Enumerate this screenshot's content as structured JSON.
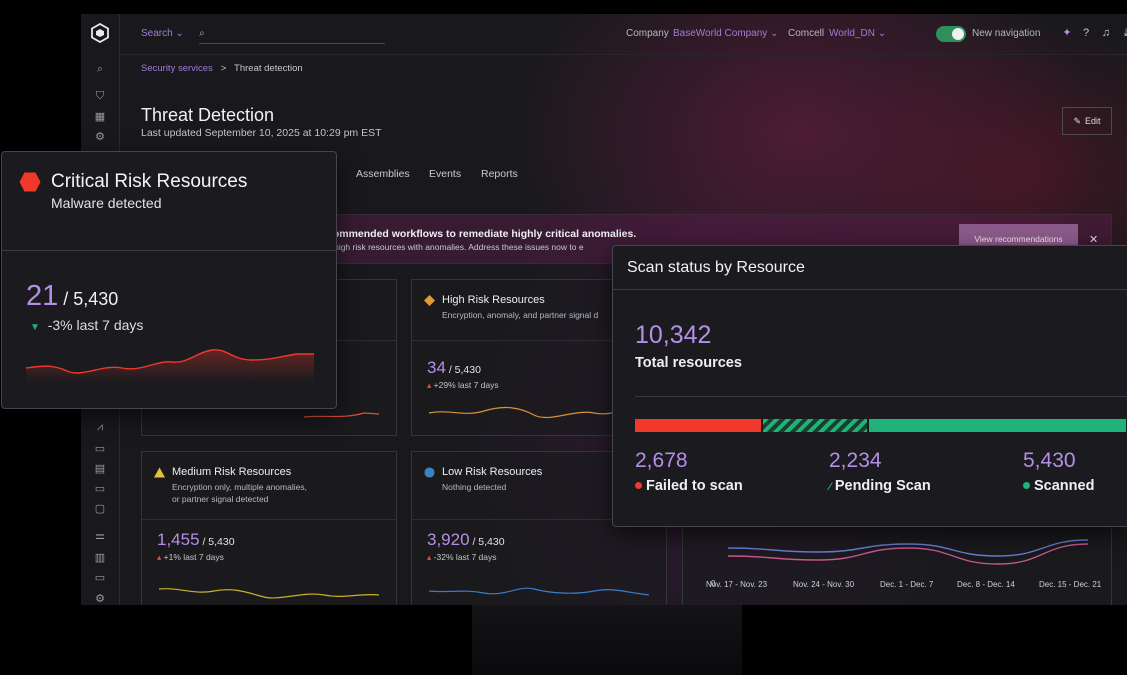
{
  "header": {
    "search_label": "Search",
    "company_label": "Company",
    "company_value": "BaseWorld Company",
    "account_label": "Comcell",
    "account_value": "World_DN",
    "new_nav_label": "New navigation"
  },
  "breadcrumb": {
    "parent": "Security services",
    "separator": ">",
    "current": "Threat detection"
  },
  "page": {
    "title": "Threat Detection",
    "updated": "Last updated September 10, 2025 at 10:29 pm EST",
    "edit_label": "Edit"
  },
  "tabs": [
    "Assemblies",
    "Events",
    "Reports"
  ],
  "banner": {
    "title": "commended workflows to remediate highly critical anomalies.",
    "subtitle": "4 high risk resources with anomalies. Address these issues now to e",
    "action_label": "View recommendations"
  },
  "cards": {
    "high": {
      "title": "High Risk Resources",
      "desc": "Encryption, anomaly, and partner signal d",
      "count": "34",
      "total": " / 5,430",
      "trend": "+29% last 7 days",
      "color": "#e09a3a"
    },
    "medium": {
      "title": "Medium Risk Resources",
      "desc1": "Encryption only, multiple anomalies,",
      "desc2": "or partner signal detected",
      "count": "1,455",
      "total": " / 5,430",
      "trend": "+1% last 7 days",
      "color": "#e3c23a"
    },
    "low": {
      "title": "Low Risk Resources",
      "desc": "Nothing detected",
      "count": "3,920",
      "total": " / 5,430",
      "trend": "-32% last 7 days",
      "color": "#3b82c4"
    }
  },
  "chart_data": {
    "type": "line",
    "categories": [
      "Nov. 17 - Nov. 23",
      "Nov. 24 - Nov. 30",
      "Dec. 1 - Dec. 7",
      "Dec. 8 - Dec. 14",
      "Dec. 15 - Dec. 21"
    ],
    "y_tick": "0",
    "series": [
      {
        "values": [
          6,
          5,
          7,
          4,
          8
        ],
        "color": "#6a7cd6"
      },
      {
        "values": [
          4,
          3,
          6,
          2,
          7
        ],
        "color": "#c9588f"
      }
    ],
    "ylim": [
      0,
      10
    ]
  },
  "critical": {
    "title": "Critical Risk Resources",
    "subtitle": "Malware detected",
    "count": "21",
    "total": " / 5,430",
    "trend": "-3% last 7 days",
    "color": "#f0382b"
  },
  "scan": {
    "title": "Scan status by Resource",
    "total": "10,342",
    "total_label": "Total resources",
    "failed": {
      "value": "2,678",
      "label": "Failed to scan",
      "count": 2678,
      "color": "#f0382b"
    },
    "pending": {
      "value": "2,234",
      "label": "Pending Scan",
      "count": 2234,
      "color": "#1fb37a"
    },
    "scanned": {
      "value": "5,430",
      "label": "Scanned",
      "count": 5430,
      "color": "#1fb37a"
    }
  }
}
